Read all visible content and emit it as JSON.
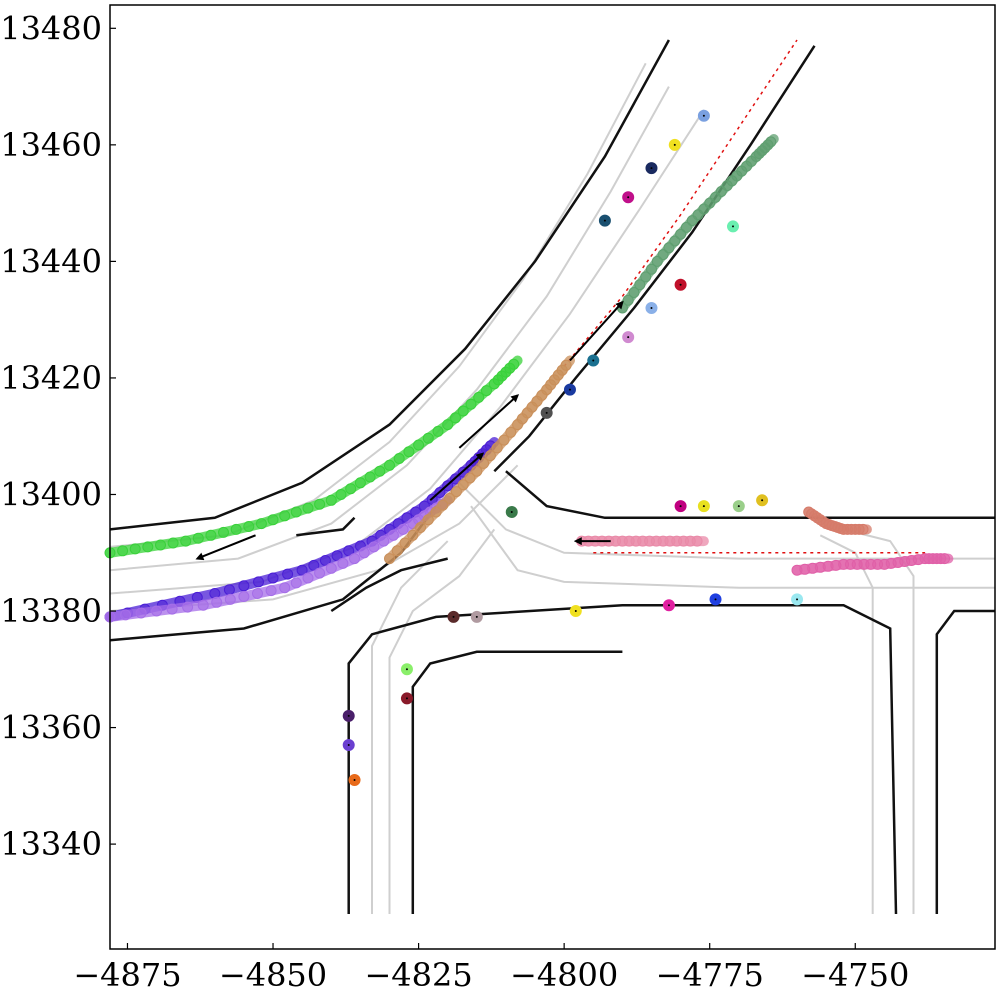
{
  "chart_data": {
    "type": "scatter",
    "title": "",
    "xlabel": "",
    "ylabel": "",
    "xlim": [
      -4878,
      -4726
    ],
    "ylim": [
      13322,
      13484
    ],
    "grid": false,
    "x_ticks": [
      -4875,
      -4850,
      -4825,
      -4800,
      -4775,
      -4750
    ],
    "x_tick_labels": [
      "−4875",
      "−4850",
      "−4825",
      "−4800",
      "−4775",
      "−4750"
    ],
    "y_ticks": [
      13340,
      13360,
      13380,
      13400,
      13420,
      13440,
      13460,
      13480
    ],
    "y_tick_labels": [
      "13340",
      "13360",
      "13380",
      "13400",
      "13420",
      "13440",
      "13460",
      "13480"
    ],
    "road_boundaries": [
      [
        [
          -4878,
          13394
        ],
        [
          -4860,
          13396
        ],
        [
          -4845,
          13402
        ],
        [
          -4830,
          13412
        ],
        [
          -4817,
          13425
        ],
        [
          -4805,
          13440
        ],
        [
          -4793,
          13458
        ],
        [
          -4782,
          13478
        ]
      ],
      [
        [
          -4878,
          13375
        ],
        [
          -4855,
          13377
        ],
        [
          -4838,
          13382
        ],
        [
          -4828,
          13390
        ],
        [
          -4822,
          13398
        ]
      ],
      [
        [
          -4812,
          13404
        ],
        [
          -4806,
          13410
        ],
        [
          -4798,
          13420
        ],
        [
          -4788,
          13432
        ],
        [
          -4778,
          13445
        ],
        [
          -4768,
          13460
        ],
        [
          -4757,
          13477
        ]
      ],
      [
        [
          -4837,
          13328
        ],
        [
          -4837,
          13371
        ],
        [
          -4833,
          13376
        ],
        [
          -4822,
          13379
        ],
        [
          -4790,
          13381
        ],
        [
          -4752,
          13381
        ],
        [
          -4744,
          13377
        ],
        [
          -4743,
          13328
        ]
      ],
      [
        [
          -4810,
          13404
        ],
        [
          -4803,
          13398
        ],
        [
          -4793,
          13396
        ],
        [
          -4775,
          13396
        ],
        [
          -4745,
          13396
        ],
        [
          -4726,
          13396
        ]
      ],
      [
        [
          -4826,
          13328
        ],
        [
          -4826,
          13367
        ],
        [
          -4823,
          13371
        ],
        [
          -4815,
          13373
        ],
        [
          -4790,
          13373
        ]
      ],
      [
        [
          -4736,
          13328
        ],
        [
          -4736,
          13376
        ],
        [
          -4733,
          13380
        ],
        [
          -4726,
          13380
        ]
      ],
      [
        [
          -4846,
          13393
        ],
        [
          -4838,
          13394
        ],
        [
          -4836,
          13396
        ]
      ],
      [
        [
          -4840,
          13380
        ],
        [
          -4834,
          13384
        ],
        [
          -4828,
          13387
        ],
        [
          -4820,
          13389
        ]
      ]
    ],
    "lane_lines": [
      [
        [
          -4878,
          13391
        ],
        [
          -4858,
          13393
        ],
        [
          -4843,
          13399
        ],
        [
          -4830,
          13409
        ],
        [
          -4818,
          13422
        ],
        [
          -4807,
          13437
        ],
        [
          -4796,
          13455
        ],
        [
          -4786,
          13474
        ]
      ],
      [
        [
          -4878,
          13387
        ],
        [
          -4856,
          13389
        ],
        [
          -4840,
          13395
        ],
        [
          -4827,
          13405
        ],
        [
          -4815,
          13418
        ],
        [
          -4803,
          13434
        ],
        [
          -4792,
          13452
        ],
        [
          -4782,
          13470
        ]
      ],
      [
        [
          -4878,
          13383
        ],
        [
          -4852,
          13385
        ],
        [
          -4836,
          13391
        ],
        [
          -4823,
          13401
        ],
        [
          -4811,
          13415
        ],
        [
          -4799,
          13431
        ],
        [
          -4787,
          13449
        ],
        [
          -4776,
          13466
        ]
      ],
      [
        [
          -4878,
          13380
        ],
        [
          -4850,
          13382
        ],
        [
          -4832,
          13387
        ],
        [
          -4818,
          13395
        ],
        [
          -4808,
          13405
        ]
      ],
      [
        [
          -4818,
          13402
        ],
        [
          -4810,
          13394
        ],
        [
          -4800,
          13390
        ],
        [
          -4770,
          13389
        ],
        [
          -4726,
          13389
        ]
      ],
      [
        [
          -4816,
          13398
        ],
        [
          -4808,
          13387
        ],
        [
          -4800,
          13385
        ],
        [
          -4770,
          13384
        ],
        [
          -4726,
          13384
        ]
      ],
      [
        [
          -4830,
          13328
        ],
        [
          -4830,
          13372
        ],
        [
          -4826,
          13380
        ],
        [
          -4818,
          13386
        ],
        [
          -4812,
          13394
        ]
      ],
      [
        [
          -4833,
          13328
        ],
        [
          -4833,
          13374
        ],
        [
          -4828,
          13384
        ],
        [
          -4820,
          13392
        ]
      ],
      [
        [
          -4740,
          13328
        ],
        [
          -4740,
          13386
        ],
        [
          -4744,
          13392
        ],
        [
          -4752,
          13394
        ]
      ],
      [
        [
          -4747,
          13328
        ],
        [
          -4747,
          13384
        ],
        [
          -4750,
          13390
        ],
        [
          -4756,
          13393
        ]
      ]
    ],
    "centerline_red": [
      [
        [
          -4800,
          13422
        ],
        [
          -4790,
          13434
        ],
        [
          -4780,
          13448
        ],
        [
          -4770,
          13463
        ],
        [
          -4760,
          13478
        ]
      ],
      [
        [
          -4795,
          13390
        ],
        [
          -4780,
          13390
        ],
        [
          -4760,
          13390
        ],
        [
          -4738,
          13390
        ]
      ]
    ],
    "trajectories": [
      {
        "color": "#39d13a",
        "points": [
          [
            -4878,
            13390
          ],
          [
            -4865,
            13392
          ],
          [
            -4852,
            13395
          ],
          [
            -4840,
            13399
          ],
          [
            -4830,
            13405
          ],
          [
            -4820,
            13412
          ],
          [
            -4812,
            13419
          ],
          [
            -4808,
            13423
          ]
        ]
      },
      {
        "color": "#4b1fd6",
        "points": [
          [
            -4878,
            13379
          ],
          [
            -4860,
            13383
          ],
          [
            -4845,
            13387
          ],
          [
            -4833,
            13392
          ],
          [
            -4824,
            13398
          ],
          [
            -4816,
            13405
          ],
          [
            -4812,
            13409
          ]
        ]
      },
      {
        "color": "#a56ee8",
        "points": [
          [
            -4878,
            13379
          ],
          [
            -4862,
            13381
          ],
          [
            -4848,
            13384
          ],
          [
            -4836,
            13389
          ],
          [
            -4826,
            13395
          ],
          [
            -4820,
            13399
          ]
        ]
      },
      {
        "color": "#c98f5a",
        "points": [
          [
            -4830,
            13389
          ],
          [
            -4822,
            13397
          ],
          [
            -4815,
            13404
          ],
          [
            -4808,
            13412
          ],
          [
            -4803,
            13418
          ],
          [
            -4799,
            13423
          ]
        ]
      },
      {
        "color": "#5f9f70",
        "points": [
          [
            -4790,
            13432
          ],
          [
            -4784,
            13440
          ],
          [
            -4778,
            13447
          ],
          [
            -4772,
            13453
          ],
          [
            -4767,
            13458
          ],
          [
            -4764,
            13461
          ]
        ]
      },
      {
        "color": "#e98aa8",
        "points": [
          [
            -4797,
            13392
          ],
          [
            -4790,
            13392
          ],
          [
            -4783,
            13392
          ],
          [
            -4776,
            13392
          ]
        ]
      },
      {
        "color": "#e060a8",
        "points": [
          [
            -4760,
            13387
          ],
          [
            -4752,
            13388
          ],
          [
            -4745,
            13388
          ],
          [
            -4738,
            13389
          ],
          [
            -4734,
            13389
          ]
        ]
      },
      {
        "color": "#d67b6a",
        "points": [
          [
            -4758,
            13397
          ],
          [
            -4755,
            13395
          ],
          [
            -4752,
            13394
          ],
          [
            -4748,
            13394
          ]
        ]
      }
    ],
    "arrows": [
      [
        [
          -4853,
          13393
        ],
        [
          -4863,
          13389
        ]
      ],
      [
        [
          -4823,
          13399
        ],
        [
          -4814,
          13407
        ]
      ],
      [
        [
          -4818,
          13408
        ],
        [
          -4808,
          13417
        ]
      ],
      [
        [
          -4799,
          13423
        ],
        [
          -4790,
          13433
        ]
      ],
      [
        [
          -4792,
          13392
        ],
        [
          -4798,
          13392
        ]
      ]
    ],
    "agents": [
      {
        "x": -4836,
        "y": 13351,
        "color": "#e86a1a"
      },
      {
        "x": -4837,
        "y": 13357,
        "color": "#6a3fd0"
      },
      {
        "x": -4837,
        "y": 13362,
        "color": "#4a1f6a"
      },
      {
        "x": -4827,
        "y": 13365,
        "color": "#8a1a2a"
      },
      {
        "x": -4827,
        "y": 13370,
        "color": "#8aef6a"
      },
      {
        "x": -4819,
        "y": 13379,
        "color": "#5a2a2a"
      },
      {
        "x": -4815,
        "y": 13379,
        "color": "#b09aa0"
      },
      {
        "x": -4798,
        "y": 13380,
        "color": "#f0e020"
      },
      {
        "x": -4782,
        "y": 13381,
        "color": "#e020a0"
      },
      {
        "x": -4774,
        "y": 13382,
        "color": "#2040e0"
      },
      {
        "x": -4760,
        "y": 13382,
        "color": "#9ae8f0"
      },
      {
        "x": -4809,
        "y": 13397,
        "color": "#3a7a4a"
      },
      {
        "x": -4780,
        "y": 13398,
        "color": "#c00080"
      },
      {
        "x": -4776,
        "y": 13398,
        "color": "#e8e020"
      },
      {
        "x": -4770,
        "y": 13398,
        "color": "#9acf8a"
      },
      {
        "x": -4766,
        "y": 13399,
        "color": "#e0c020"
      },
      {
        "x": -4803,
        "y": 13414,
        "color": "#505050"
      },
      {
        "x": -4799,
        "y": 13418,
        "color": "#1a3aa0"
      },
      {
        "x": -4795,
        "y": 13423,
        "color": "#1a7090"
      },
      {
        "x": -4789,
        "y": 13427,
        "color": "#d08ad0"
      },
      {
        "x": -4785,
        "y": 13432,
        "color": "#8ab0e8"
      },
      {
        "x": -4780,
        "y": 13436,
        "color": "#c0102a"
      },
      {
        "x": -4771,
        "y": 13446,
        "color": "#6aefb0"
      },
      {
        "x": -4793,
        "y": 13447,
        "color": "#1a5070"
      },
      {
        "x": -4789,
        "y": 13451,
        "color": "#c0108a"
      },
      {
        "x": -4785,
        "y": 13456,
        "color": "#1a2a60"
      },
      {
        "x": -4781,
        "y": 13460,
        "color": "#f0e020"
      },
      {
        "x": -4776,
        "y": 13465,
        "color": "#7aa0e0"
      }
    ]
  }
}
